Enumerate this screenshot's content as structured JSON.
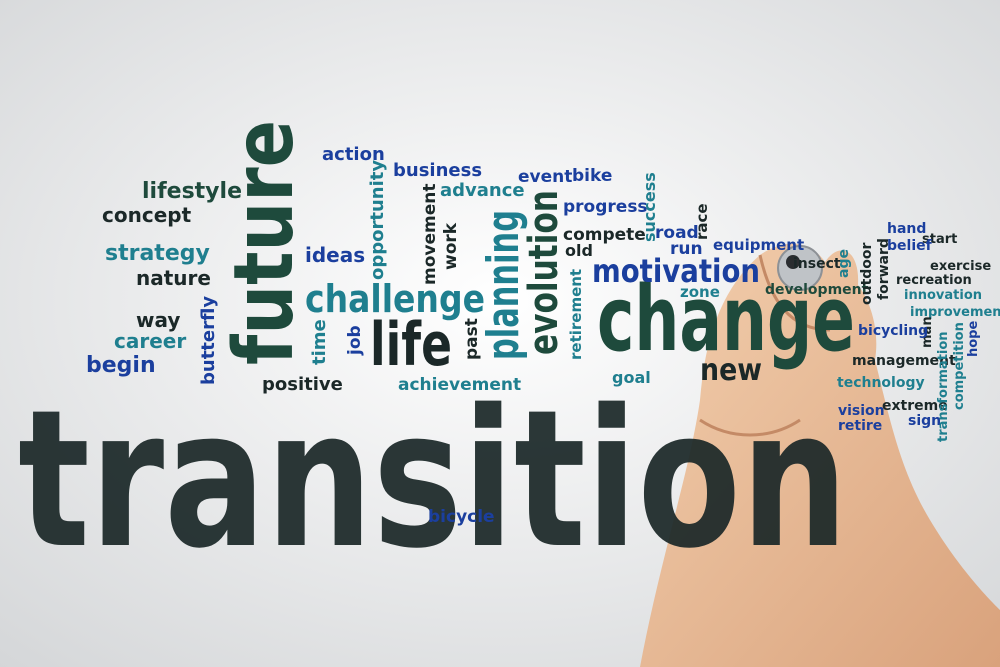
{
  "words": [
    "transition",
    "change",
    "future",
    "life",
    "challenge",
    "motivation",
    "planning",
    "evolution",
    "new",
    "action",
    "business",
    "advance",
    "event",
    "bike",
    "progress",
    "compete",
    "old",
    "success",
    "road",
    "run",
    "race",
    "equipment",
    "zone",
    "lifestyle",
    "concept",
    "strategy",
    "nature",
    "way",
    "career",
    "begin",
    "butterfly",
    "ideas",
    "opportunity",
    "movement",
    "work",
    "time",
    "job",
    "past",
    "retirement",
    "positive",
    "achievement",
    "goal",
    "bicycle",
    "insect",
    "development",
    "age",
    "outdoor",
    "forward",
    "hand",
    "start",
    "belief",
    "exercise",
    "recreation",
    "innovation",
    "improvement",
    "man",
    "hope",
    "bicycling",
    "management",
    "technology",
    "vision",
    "extreme",
    "sign",
    "retire",
    "transformation",
    "competition"
  ]
}
